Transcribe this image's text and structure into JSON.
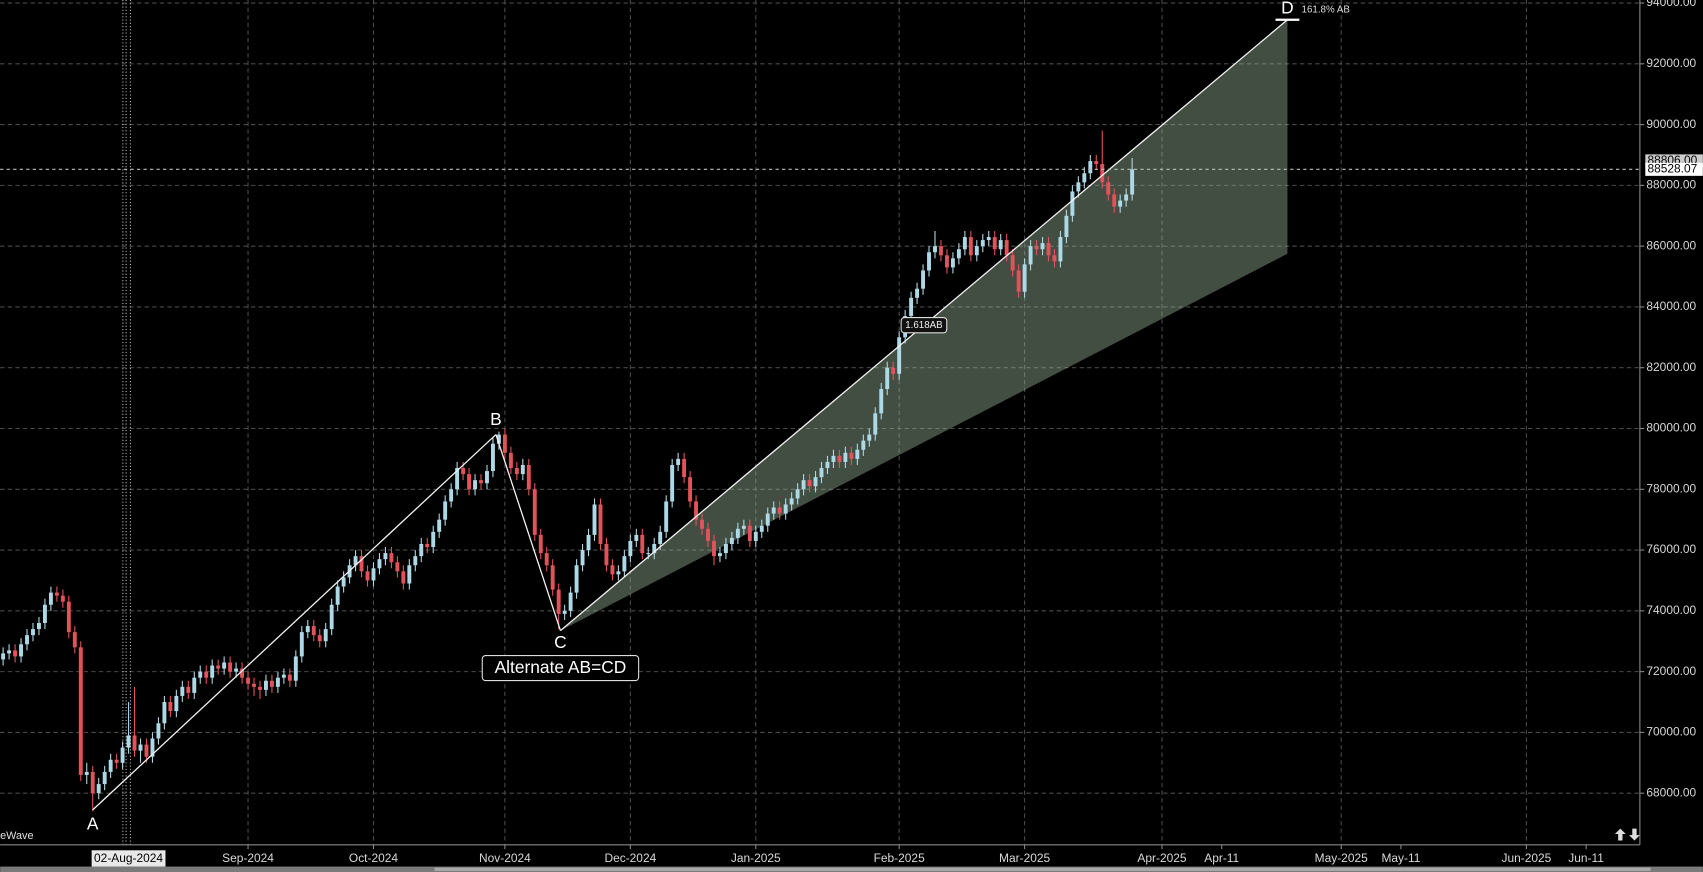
{
  "chart_data": {
    "type": "candlestick",
    "indicator_label": "eWave",
    "up_color": "#add8e6",
    "down_color": "#e2525a",
    "xlim": [
      -0.5,
      274
    ],
    "ylim": [
      66300,
      94100
    ],
    "grid": true,
    "yticks": [
      {
        "value": 68000,
        "label": "68000.00"
      },
      {
        "value": 70000,
        "label": "70000.00"
      },
      {
        "value": 72000,
        "label": "72000.00"
      },
      {
        "value": 74000,
        "label": "74000.00"
      },
      {
        "value": 76000,
        "label": "76000.00"
      },
      {
        "value": 78000,
        "label": "78000.00"
      },
      {
        "value": 80000,
        "label": "80000.00"
      },
      {
        "value": 82000,
        "label": "82000.00"
      },
      {
        "value": 84000,
        "label": "84000.00"
      },
      {
        "value": 86000,
        "label": "86000.00"
      },
      {
        "value": 88000,
        "label": "88000.00"
      },
      {
        "value": 90000,
        "label": "90000.00"
      },
      {
        "value": 92000,
        "label": "92000.00"
      },
      {
        "value": 94000,
        "label": "94000.00"
      }
    ],
    "xticks": [
      {
        "value": 41,
        "label": "Sep-2024"
      },
      {
        "value": 62,
        "label": "Oct-2024"
      },
      {
        "value": 84,
        "label": "Nov-2024"
      },
      {
        "value": 105,
        "label": "Dec-2024"
      },
      {
        "value": 126,
        "label": "Jan-2025"
      },
      {
        "value": 150,
        "label": "Feb-2025"
      },
      {
        "value": 171,
        "label": "Mar-2025"
      },
      {
        "value": 194,
        "label": "Apr-2025"
      },
      {
        "value": 224,
        "label": "May-2025"
      },
      {
        "value": 255,
        "label": "Jun-2025"
      }
    ],
    "xticks_minor": [
      {
        "value": 204,
        "label": "Apr-11"
      },
      {
        "value": 234,
        "label": "May-11"
      },
      {
        "value": 265,
        "label": "Jun-11"
      }
    ],
    "cursor_x": {
      "value": 21,
      "label": "02-Aug-2024"
    },
    "prev_price": {
      "value": 88806,
      "label": "88806.00"
    },
    "last_price": 88528.07,
    "pattern": {
      "title": "Alternate AB=CD",
      "points": [
        {
          "label": "A",
          "x": 15,
          "y": 67450
        },
        {
          "label": "B",
          "x": 82.5,
          "y": 79800
        },
        {
          "label": "C",
          "x": 93.3,
          "y": 73350
        },
        {
          "label": "D",
          "x": 215,
          "y": 93450
        }
      ],
      "d_lower": 85750,
      "d_label": "161.8% AB",
      "mid_label": "1.618AB"
    },
    "ohlc": [
      [
        72400,
        72800,
        72200,
        72600
      ],
      [
        72600,
        72900,
        72400,
        72700
      ],
      [
        72700,
        72900,
        72300,
        72500
      ],
      [
        72500,
        73100,
        72300,
        72900
      ],
      [
        72900,
        73400,
        72700,
        73200
      ],
      [
        73200,
        73600,
        73000,
        73400
      ],
      [
        73400,
        73800,
        73200,
        73600
      ],
      [
        73600,
        74400,
        73400,
        74200
      ],
      [
        74200,
        74800,
        74000,
        74600
      ],
      [
        74600,
        74800,
        74300,
        74500
      ],
      [
        74500,
        74700,
        74100,
        74300
      ],
      [
        74300,
        74500,
        73100,
        73300
      ],
      [
        73300,
        73500,
        72600,
        72800
      ],
      [
        72800,
        73000,
        68400,
        68600
      ],
      [
        68600,
        69000,
        68300,
        68700
      ],
      [
        68700,
        68900,
        67400,
        68000
      ],
      [
        68000,
        68500,
        67800,
        68300
      ],
      [
        68300,
        68900,
        68100,
        68700
      ],
      [
        68700,
        69300,
        68500,
        69100
      ],
      [
        69100,
        69300,
        68800,
        69000
      ],
      [
        69000,
        69700,
        68800,
        69500
      ],
      [
        69500,
        71000,
        69300,
        69900
      ],
      [
        69900,
        71500,
        69200,
        69400
      ],
      [
        69400,
        69800,
        69000,
        69600
      ],
      [
        69600,
        69800,
        69000,
        69200
      ],
      [
        69200,
        70000,
        69000,
        69800
      ],
      [
        69800,
        70500,
        69600,
        70300
      ],
      [
        70300,
        71200,
        70100,
        71000
      ],
      [
        71000,
        71200,
        70500,
        70700
      ],
      [
        70700,
        71400,
        70500,
        71200
      ],
      [
        71200,
        71700,
        71000,
        71500
      ],
      [
        71500,
        71700,
        71100,
        71300
      ],
      [
        71300,
        72000,
        71100,
        71800
      ],
      [
        71800,
        72200,
        71600,
        72000
      ],
      [
        72000,
        72200,
        71600,
        71800
      ],
      [
        71800,
        72400,
        71600,
        72200
      ],
      [
        72200,
        72400,
        71900,
        72100
      ],
      [
        72100,
        72500,
        71900,
        72300
      ],
      [
        72300,
        72500,
        71800,
        72000
      ],
      [
        72000,
        72300,
        71800,
        72100
      ],
      [
        72100,
        72300,
        71600,
        71800
      ],
      [
        71800,
        72000,
        71400,
        71600
      ],
      [
        71600,
        71800,
        71200,
        71500
      ],
      [
        71500,
        71700,
        71100,
        71400
      ],
      [
        71400,
        71900,
        71200,
        71700
      ],
      [
        71700,
        71900,
        71300,
        71500
      ],
      [
        71500,
        72000,
        71300,
        71800
      ],
      [
        71800,
        72100,
        71600,
        71900
      ],
      [
        71900,
        72100,
        71500,
        71700
      ],
      [
        71700,
        72700,
        71500,
        72500
      ],
      [
        72500,
        73500,
        72300,
        73300
      ],
      [
        73300,
        73700,
        73100,
        73500
      ],
      [
        73500,
        73700,
        73000,
        73200
      ],
      [
        73200,
        73400,
        72800,
        73000
      ],
      [
        73000,
        73600,
        72800,
        73400
      ],
      [
        73400,
        74400,
        73200,
        74200
      ],
      [
        74200,
        75000,
        74000,
        74800
      ],
      [
        74800,
        75300,
        74600,
        75100
      ],
      [
        75100,
        75700,
        74900,
        75500
      ],
      [
        75500,
        76000,
        75300,
        75800
      ],
      [
        75800,
        76000,
        75100,
        75300
      ],
      [
        75300,
        75500,
        74800,
        75000
      ],
      [
        75000,
        75600,
        74800,
        75400
      ],
      [
        75400,
        75900,
        75200,
        75700
      ],
      [
        75700,
        76100,
        75500,
        75900
      ],
      [
        75900,
        76100,
        75400,
        75600
      ],
      [
        75600,
        75800,
        75100,
        75300
      ],
      [
        75300,
        75500,
        74700,
        74900
      ],
      [
        74900,
        75700,
        74700,
        75500
      ],
      [
        75500,
        76000,
        75300,
        75800
      ],
      [
        75800,
        76400,
        75600,
        76200
      ],
      [
        76200,
        76400,
        75900,
        76100
      ],
      [
        76100,
        76800,
        75900,
        76600
      ],
      [
        76600,
        77200,
        76400,
        77000
      ],
      [
        77000,
        77800,
        76800,
        77600
      ],
      [
        77600,
        78200,
        77400,
        78000
      ],
      [
        78000,
        78900,
        77800,
        78700
      ],
      [
        78700,
        78900,
        78300,
        78500
      ],
      [
        78500,
        78700,
        77800,
        78000
      ],
      [
        78000,
        78500,
        77800,
        78300
      ],
      [
        78300,
        78500,
        78000,
        78200
      ],
      [
        78200,
        78800,
        78000,
        78600
      ],
      [
        78600,
        79700,
        78400,
        79500
      ],
      [
        79500,
        79900,
        79300,
        79800
      ],
      [
        79800,
        80000,
        79000,
        79200
      ],
      [
        79200,
        79400,
        78500,
        78700
      ],
      [
        78700,
        78900,
        78300,
        78500
      ],
      [
        78500,
        79000,
        78300,
        78800
      ],
      [
        78800,
        79000,
        77800,
        78000
      ],
      [
        78000,
        78200,
        76300,
        76500
      ],
      [
        76500,
        76700,
        75700,
        75900
      ],
      [
        75900,
        76100,
        75300,
        75500
      ],
      [
        75500,
        75700,
        74500,
        74700
      ],
      [
        74700,
        74900,
        73400,
        73900
      ],
      [
        73900,
        74200,
        73700,
        74000
      ],
      [
        74000,
        74800,
        73800,
        74600
      ],
      [
        74600,
        75700,
        74400,
        75500
      ],
      [
        75500,
        76200,
        75300,
        76000
      ],
      [
        76000,
        76700,
        75800,
        76500
      ],
      [
        76500,
        77700,
        76300,
        77500
      ],
      [
        77500,
        77700,
        76000,
        76200
      ],
      [
        76200,
        76400,
        75300,
        75500
      ],
      [
        75500,
        75700,
        75000,
        75200
      ],
      [
        75200,
        75500,
        75000,
        75300
      ],
      [
        75300,
        76000,
        75100,
        75800
      ],
      [
        75800,
        76500,
        75600,
        76300
      ],
      [
        76300,
        76700,
        76100,
        76500
      ],
      [
        76500,
        76700,
        75700,
        75900
      ],
      [
        75900,
        76100,
        75700,
        75900
      ],
      [
        75900,
        76400,
        75700,
        76200
      ],
      [
        76200,
        76800,
        76000,
        76600
      ],
      [
        76600,
        77800,
        76400,
        77600
      ],
      [
        77600,
        79000,
        77400,
        78800
      ],
      [
        78800,
        79200,
        78600,
        79000
      ],
      [
        79000,
        79200,
        78200,
        78400
      ],
      [
        78400,
        78600,
        77400,
        77600
      ],
      [
        77600,
        77800,
        76800,
        77000
      ],
      [
        77000,
        77200,
        76500,
        76700
      ],
      [
        76700,
        76900,
        76100,
        76300
      ],
      [
        76300,
        76500,
        75500,
        75800
      ],
      [
        75800,
        76100,
        75600,
        75900
      ],
      [
        75900,
        76400,
        75700,
        76200
      ],
      [
        76200,
        76600,
        76000,
        76400
      ],
      [
        76400,
        76900,
        76200,
        76700
      ],
      [
        76700,
        77000,
        76500,
        76800
      ],
      [
        76800,
        77000,
        76100,
        76300
      ],
      [
        76300,
        76800,
        76100,
        76600
      ],
      [
        76600,
        77000,
        76400,
        76800
      ],
      [
        76800,
        77400,
        76600,
        77200
      ],
      [
        77200,
        77600,
        77000,
        77400
      ],
      [
        77400,
        77600,
        77000,
        77200
      ],
      [
        77200,
        77700,
        77000,
        77500
      ],
      [
        77500,
        77900,
        77300,
        77700
      ],
      [
        77700,
        78200,
        77500,
        78000
      ],
      [
        78000,
        78500,
        77800,
        78300
      ],
      [
        78300,
        78500,
        77900,
        78100
      ],
      [
        78100,
        78600,
        77900,
        78400
      ],
      [
        78400,
        78900,
        78200,
        78700
      ],
      [
        78700,
        79100,
        78500,
        78900
      ],
      [
        78900,
        79300,
        78700,
        79100
      ],
      [
        79100,
        79300,
        78700,
        78900
      ],
      [
        78900,
        79400,
        78700,
        79200
      ],
      [
        79200,
        79400,
        78800,
        79000
      ],
      [
        79000,
        79500,
        78800,
        79300
      ],
      [
        79300,
        79800,
        79100,
        79600
      ],
      [
        79600,
        80000,
        79400,
        79800
      ],
      [
        79800,
        80700,
        79600,
        80500
      ],
      [
        80500,
        81500,
        80300,
        81300
      ],
      [
        81300,
        82200,
        81100,
        82000
      ],
      [
        82000,
        82200,
        81600,
        81800
      ],
      [
        81800,
        83200,
        81600,
        83000
      ],
      [
        83000,
        83900,
        82800,
        83700
      ],
      [
        83700,
        84500,
        83500,
        84300
      ],
      [
        84300,
        84800,
        84100,
        84600
      ],
      [
        84600,
        85400,
        84400,
        85200
      ],
      [
        85200,
        86000,
        85000,
        85800
      ],
      [
        85800,
        86500,
        85600,
        86000
      ],
      [
        86000,
        86200,
        85500,
        85700
      ],
      [
        85700,
        85900,
        85100,
        85300
      ],
      [
        85300,
        85800,
        85100,
        85600
      ],
      [
        85600,
        86100,
        85400,
        85900
      ],
      [
        85900,
        86500,
        85700,
        86300
      ],
      [
        86300,
        86500,
        85500,
        85700
      ],
      [
        85700,
        86200,
        85500,
        86000
      ],
      [
        86000,
        86400,
        85800,
        86200
      ],
      [
        86200,
        86500,
        86000,
        86300
      ],
      [
        86300,
        86500,
        85700,
        85900
      ],
      [
        85900,
        86400,
        85700,
        86200
      ],
      [
        86200,
        86400,
        85500,
        85700
      ],
      [
        85700,
        85900,
        85000,
        85200
      ],
      [
        85200,
        85400,
        84300,
        84500
      ],
      [
        84500,
        85600,
        84300,
        85400
      ],
      [
        85400,
        86200,
        85200,
        86000
      ],
      [
        86000,
        86200,
        85700,
        85900
      ],
      [
        85900,
        86300,
        85700,
        86100
      ],
      [
        86100,
        86300,
        85500,
        85700
      ],
      [
        85700,
        85900,
        85300,
        85500
      ],
      [
        85500,
        86500,
        85300,
        86300
      ],
      [
        86300,
        87200,
        86100,
        87000
      ],
      [
        87000,
        88000,
        86800,
        87800
      ],
      [
        87800,
        88300,
        87600,
        88100
      ],
      [
        88100,
        88600,
        87900,
        88400
      ],
      [
        88400,
        89000,
        88200,
        88800
      ],
      [
        88800,
        89000,
        88500,
        88700
      ],
      [
        88700,
        89800,
        87900,
        88100
      ],
      [
        88100,
        88300,
        87500,
        87700
      ],
      [
        87700,
        87900,
        87100,
        87300
      ],
      [
        87300,
        87700,
        87100,
        87500
      ],
      [
        87500,
        87900,
        87300,
        87700
      ],
      [
        87700,
        88900,
        87500,
        88528.07
      ]
    ]
  }
}
